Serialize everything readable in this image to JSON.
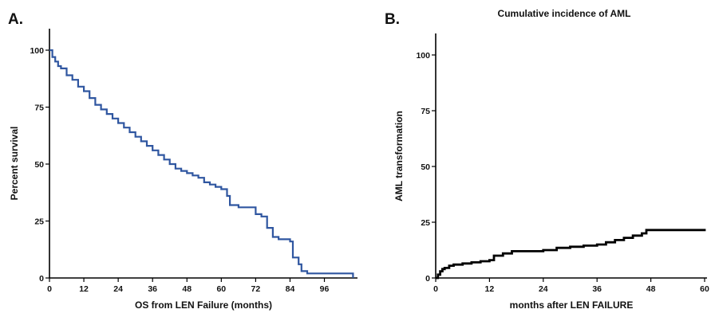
{
  "chart_data": [
    {
      "type": "line",
      "panel_label": "A.",
      "title": "",
      "xlabel": "OS from LEN Failure (months)",
      "ylabel": "Percent survival",
      "xlim": [
        0,
        107
      ],
      "ylim": [
        0,
        100
      ],
      "xticks": [
        "0",
        "12",
        "24",
        "36",
        "48",
        "60",
        "72",
        "84",
        "96"
      ],
      "yticks": [
        "0",
        "25",
        "50",
        "75",
        "100"
      ],
      "grid": false,
      "color": "#2f56a0",
      "series": [
        {
          "x": [
            0,
            1,
            2,
            3,
            4,
            6,
            8,
            10,
            12,
            14,
            16,
            18,
            20,
            22,
            24,
            26,
            28,
            30,
            32,
            34,
            36,
            38,
            40,
            42,
            44,
            46,
            48,
            50,
            52,
            54,
            56,
            58,
            60,
            62,
            63,
            66,
            70,
            72,
            74,
            76,
            78,
            80,
            82,
            84,
            85,
            86,
            87,
            88,
            90,
            92,
            96,
            106
          ],
          "y": [
            100,
            97,
            95,
            93,
            92,
            89,
            87,
            84,
            82,
            79,
            76,
            74,
            72,
            70,
            68,
            66,
            64,
            62,
            60,
            58,
            56,
            54,
            52,
            50,
            48,
            47,
            46,
            45,
            44,
            42,
            41,
            40,
            39,
            36,
            32,
            31,
            31,
            28,
            27,
            22,
            18,
            17,
            17,
            16,
            9,
            9,
            6,
            3,
            2,
            2,
            2,
            0
          ]
        }
      ]
    },
    {
      "type": "line",
      "panel_label": "B.",
      "title": "Cumulative incidence of AML",
      "xlabel": "months after LEN FAILURE",
      "ylabel": "AML transformation",
      "xlim": [
        0,
        60
      ],
      "ylim": [
        0,
        110
      ],
      "xticks": [
        "0",
        "12",
        "24",
        "36",
        "48",
        "60"
      ],
      "yticks": [
        "0",
        "25",
        "50",
        "75",
        "100"
      ],
      "grid": false,
      "color": "#000000",
      "series": [
        {
          "x": [
            0,
            0.5,
            1,
            1.5,
            2,
            3,
            4,
            6,
            8,
            10,
            12,
            13,
            15,
            17,
            20,
            24,
            27,
            30,
            33,
            36,
            38,
            40,
            42,
            44,
            46,
            47,
            50,
            55,
            60
          ],
          "y": [
            0,
            1.5,
            3,
            4,
            4.5,
            5.5,
            6,
            6.5,
            7,
            7.5,
            8,
            10,
            11,
            12,
            12,
            12.5,
            13.5,
            14,
            14.5,
            15,
            16,
            17,
            18,
            19,
            20,
            21.5,
            21.5,
            21.5,
            21
          ]
        }
      ]
    }
  ]
}
